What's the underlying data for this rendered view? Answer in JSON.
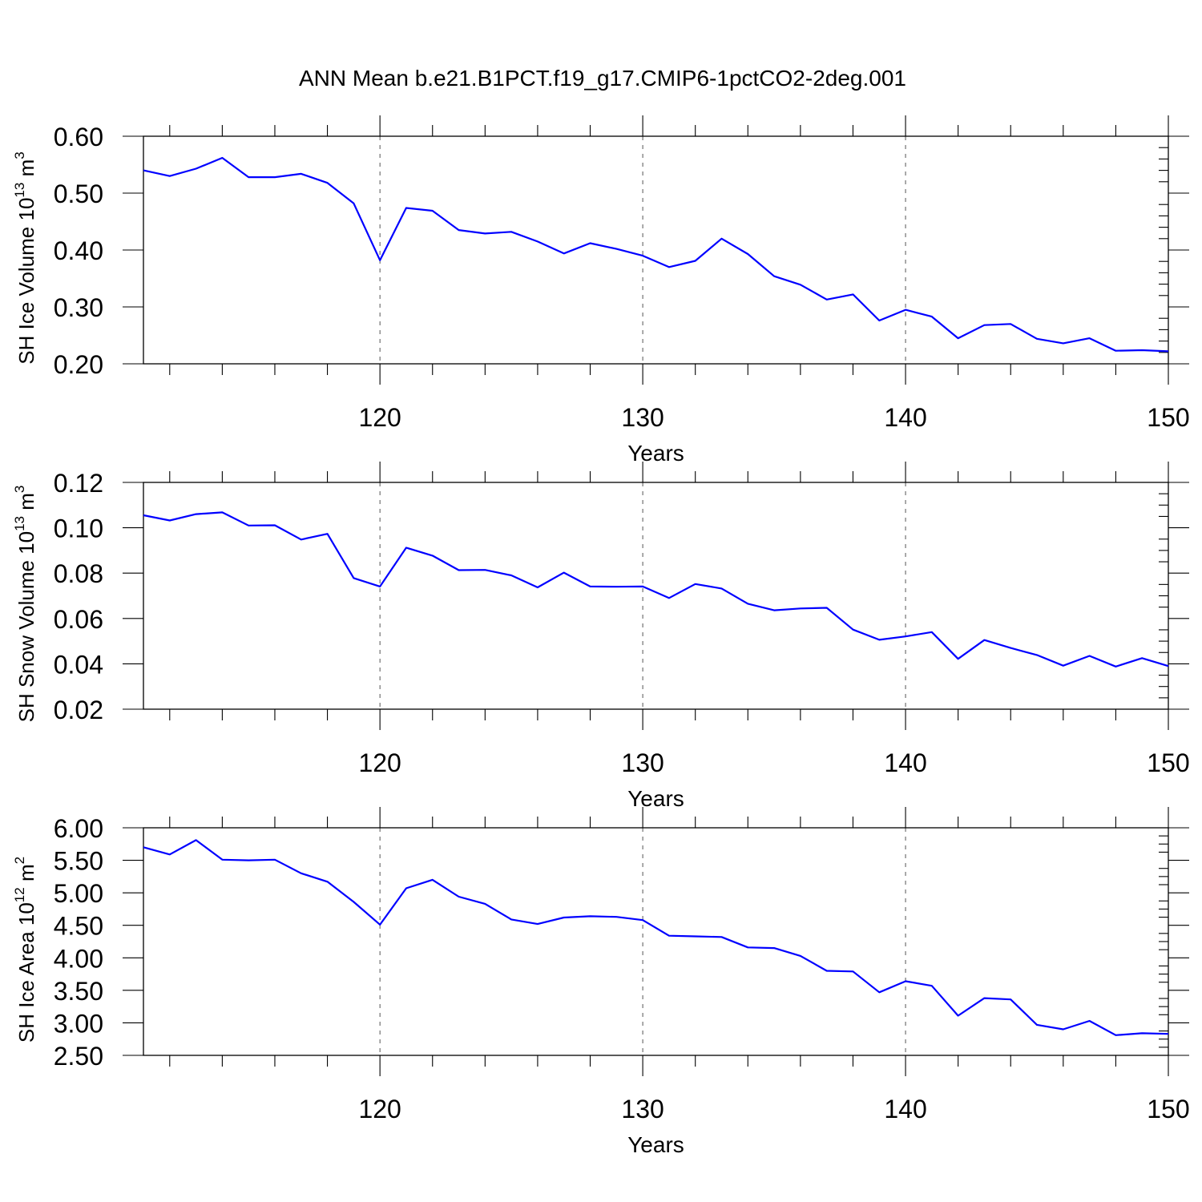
{
  "title": "ANN Mean b.e21.B1PCT.f19_g17.CMIP6-1pctCO2-2deg.001",
  "chart_data": [
    {
      "type": "line",
      "ylabel": "SH Ice Volume 10",
      "ylabel_exp": "13",
      "ylabel_unit": " m",
      "ylabel_unit_exp": "3",
      "xlabel": "Years",
      "xlim": [
        111,
        150
      ],
      "ylim": [
        0.2,
        0.6
      ],
      "xticks": [
        "120",
        "130",
        "140",
        "150"
      ],
      "yticks": [
        "0.20",
        "0.30",
        "0.40",
        "0.50",
        "0.60"
      ],
      "grid": "vertical dashed at major x ticks",
      "color": "#0000ff",
      "x": [
        111,
        112,
        113,
        114,
        115,
        116,
        117,
        118,
        119,
        120,
        121,
        122,
        123,
        124,
        125,
        126,
        127,
        128,
        129,
        130,
        131,
        132,
        133,
        134,
        135,
        136,
        137,
        138,
        139,
        140,
        141,
        142,
        143,
        144,
        145,
        146,
        147,
        148,
        149,
        150
      ],
      "values": [
        0.54,
        0.53,
        0.543,
        0.562,
        0.528,
        0.528,
        0.534,
        0.518,
        0.482,
        0.382,
        0.474,
        0.469,
        0.435,
        0.429,
        0.432,
        0.415,
        0.394,
        0.412,
        0.402,
        0.39,
        0.37,
        0.381,
        0.42,
        0.393,
        0.354,
        0.339,
        0.313,
        0.322,
        0.276,
        0.295,
        0.283,
        0.245,
        0.268,
        0.27,
        0.244,
        0.236,
        0.245,
        0.223,
        0.224,
        0.222
      ]
    },
    {
      "type": "line",
      "ylabel": "SH Snow Volume 10",
      "ylabel_exp": "13",
      "ylabel_unit": " m",
      "ylabel_unit_exp": "3",
      "xlabel": "Years",
      "xlim": [
        111,
        150
      ],
      "ylim": [
        0.02,
        0.12
      ],
      "xticks": [
        "120",
        "130",
        "140",
        "150"
      ],
      "yticks": [
        "0.02",
        "0.04",
        "0.06",
        "0.08",
        "0.10",
        "0.12"
      ],
      "grid": "vertical dashed at major x ticks",
      "color": "#0000ff",
      "x": [
        111,
        112,
        113,
        114,
        115,
        116,
        117,
        118,
        119,
        120,
        121,
        122,
        123,
        124,
        125,
        126,
        127,
        128,
        129,
        130,
        131,
        132,
        133,
        134,
        135,
        136,
        137,
        138,
        139,
        140,
        141,
        142,
        143,
        144,
        145,
        146,
        147,
        148,
        149,
        150
      ],
      "values": [
        0.1055,
        0.1032,
        0.106,
        0.1068,
        0.101,
        0.1011,
        0.0948,
        0.0973,
        0.0778,
        0.0741,
        0.0912,
        0.0877,
        0.0813,
        0.0814,
        0.079,
        0.0737,
        0.0802,
        0.0741,
        0.074,
        0.0741,
        0.069,
        0.0752,
        0.0732,
        0.0665,
        0.0636,
        0.0644,
        0.0647,
        0.0551,
        0.0506,
        0.0521,
        0.054,
        0.0422,
        0.0505,
        0.047,
        0.0439,
        0.0392,
        0.0435,
        0.0388,
        0.0425,
        0.039
      ]
    },
    {
      "type": "line",
      "ylabel": "SH Ice Area 10",
      "ylabel_exp": "12",
      "ylabel_unit": " m",
      "ylabel_unit_exp": "2",
      "xlabel": "Years",
      "xlim": [
        111,
        150
      ],
      "ylim": [
        2.5,
        6.0
      ],
      "xticks": [
        "120",
        "130",
        "140",
        "150"
      ],
      "yticks": [
        "2.50",
        "3.00",
        "3.50",
        "4.00",
        "4.50",
        "5.00",
        "5.50",
        "6.00"
      ],
      "grid": "vertical dashed at major x ticks",
      "color": "#0000ff",
      "x": [
        111,
        112,
        113,
        114,
        115,
        116,
        117,
        118,
        119,
        120,
        121,
        122,
        123,
        124,
        125,
        126,
        127,
        128,
        129,
        130,
        131,
        132,
        133,
        134,
        135,
        136,
        137,
        138,
        139,
        140,
        141,
        142,
        143,
        144,
        145,
        146,
        147,
        148,
        149,
        150
      ],
      "values": [
        5.7,
        5.59,
        5.81,
        5.51,
        5.5,
        5.51,
        5.3,
        5.17,
        4.86,
        4.51,
        5.07,
        5.2,
        4.94,
        4.83,
        4.59,
        4.52,
        4.62,
        4.64,
        4.63,
        4.58,
        4.34,
        4.33,
        4.32,
        4.16,
        4.15,
        4.03,
        3.8,
        3.79,
        3.47,
        3.64,
        3.57,
        3.11,
        3.38,
        3.36,
        2.97,
        2.9,
        3.03,
        2.81,
        2.84,
        2.83
      ]
    }
  ]
}
